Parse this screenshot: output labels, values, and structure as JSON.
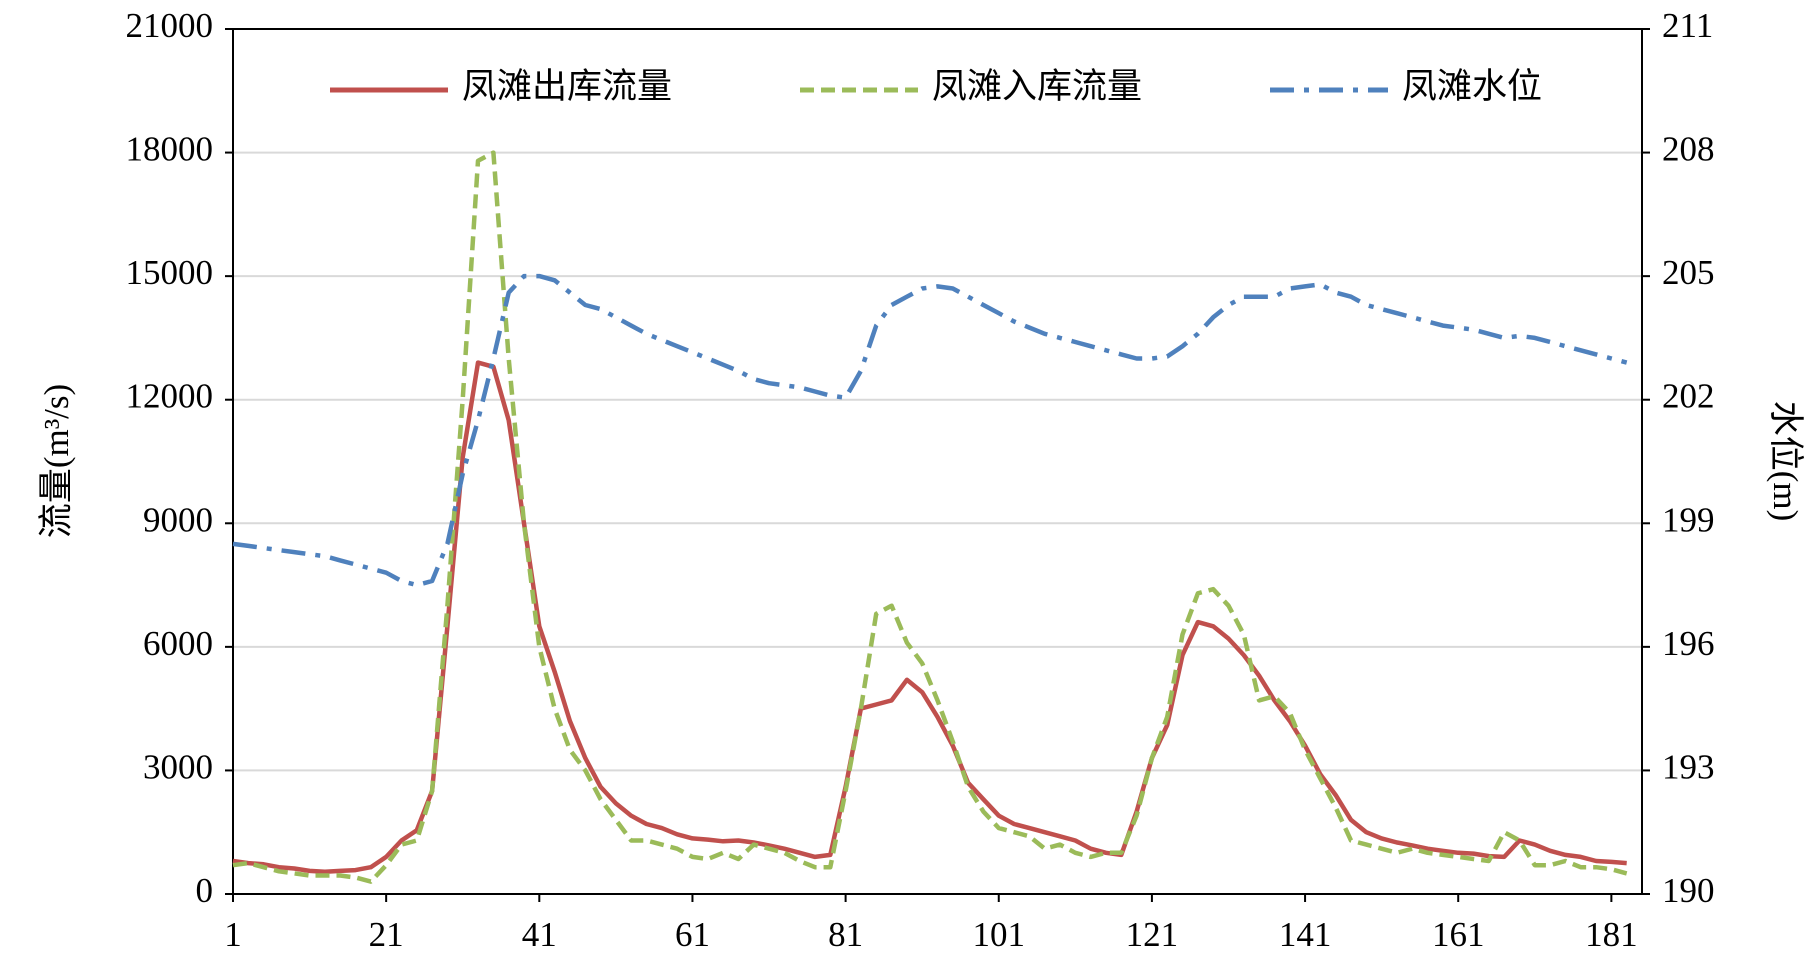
{
  "chart_data": {
    "type": "line",
    "y_label": "流量(m³/s)",
    "y2_label": "水位(m)",
    "x": [
      1,
      3,
      5,
      7,
      9,
      11,
      13,
      15,
      17,
      19,
      21,
      23,
      25,
      27,
      29,
      31,
      33,
      35,
      37,
      39,
      41,
      43,
      45,
      47,
      49,
      51,
      53,
      55,
      57,
      59,
      61,
      63,
      65,
      67,
      69,
      71,
      73,
      75,
      77,
      79,
      81,
      83,
      85,
      87,
      89,
      91,
      93,
      95,
      97,
      99,
      101,
      103,
      105,
      107,
      109,
      111,
      113,
      115,
      117,
      119,
      121,
      123,
      125,
      127,
      129,
      131,
      133,
      135,
      137,
      139,
      141,
      143,
      145,
      147,
      149,
      151,
      153,
      155,
      157,
      159,
      161,
      163,
      165,
      167,
      169,
      171,
      173,
      175,
      177,
      179,
      181,
      183
    ],
    "xlim": [
      1,
      185
    ],
    "xticks": [
      1,
      21,
      41,
      61,
      81,
      101,
      121,
      141,
      161,
      181
    ],
    "ylim": [
      0,
      21000
    ],
    "yticks": [
      0,
      3000,
      6000,
      9000,
      12000,
      15000,
      18000,
      21000
    ],
    "y2lim": [
      190,
      211
    ],
    "y2ticks": [
      190,
      193,
      196,
      199,
      202,
      205,
      208,
      211
    ],
    "grid": true,
    "legend": "top",
    "series": [
      {
        "name": "凤滩出库流量",
        "color": "#c0504d",
        "linestyle": "solid",
        "values": [
          800,
          750,
          720,
          650,
          620,
          560,
          540,
          560,
          580,
          650,
          900,
          1300,
          1550,
          2500,
          6500,
          10600,
          12900,
          12800,
          11500,
          9000,
          6500,
          5400,
          4200,
          3300,
          2600,
          2200,
          1900,
          1700,
          1600,
          1450,
          1350,
          1320,
          1280,
          1300,
          1250,
          1180,
          1100,
          1000,
          900,
          950,
          2600,
          4500,
          4600,
          4700,
          5200,
          4900,
          4300,
          3600,
          2700,
          2300,
          1900,
          1700,
          1600,
          1500,
          1400,
          1300,
          1100,
          1000,
          950,
          2000,
          3300,
          4100,
          5800,
          6600,
          6500,
          6200,
          5800,
          5300,
          4700,
          4200,
          3600,
          2900,
          2400,
          1800,
          1500,
          1350,
          1250,
          1180,
          1100,
          1050,
          1000,
          980,
          920,
          900,
          1300,
          1200,
          1050,
          950,
          900,
          800,
          780,
          750
        ]
      },
      {
        "name": "凤滩入库流量",
        "color": "#9bbb59",
        "linestyle": "dashed",
        "values": [
          700,
          750,
          650,
          550,
          500,
          450,
          450,
          450,
          400,
          300,
          700,
          1200,
          1300,
          2500,
          7000,
          12000,
          17800,
          18000,
          13000,
          9000,
          6000,
          4500,
          3500,
          3000,
          2300,
          1800,
          1300,
          1300,
          1200,
          1100,
          900,
          850,
          1000,
          850,
          1200,
          1100,
          1000,
          800,
          650,
          650,
          2500,
          4500,
          6800,
          7000,
          6100,
          5600,
          4700,
          3700,
          2600,
          2000,
          1600,
          1500,
          1400,
          1100,
          1200,
          1000,
          900,
          1000,
          1000,
          1900,
          3300,
          4300,
          6300,
          7300,
          7400,
          7000,
          6300,
          4700,
          4800,
          4400,
          3500,
          2800,
          2100,
          1300,
          1200,
          1100,
          1000,
          1100,
          1000,
          950,
          900,
          850,
          800,
          1500,
          1300,
          700,
          700,
          800,
          650,
          650,
          600,
          500
        ]
      },
      {
        "name": "凤滩水位",
        "color": "#4f81bd",
        "linestyle": "dashdot",
        "axis": "y2",
        "values": [
          198.5,
          198.45,
          198.4,
          198.35,
          198.3,
          198.25,
          198.2,
          198.1,
          198.0,
          197.9,
          197.8,
          197.6,
          197.5,
          197.6,
          198.5,
          200.2,
          201.5,
          203,
          204.6,
          205,
          205,
          204.9,
          204.6,
          204.3,
          204.2,
          204,
          203.8,
          203.6,
          203.45,
          203.3,
          203.15,
          203,
          202.85,
          202.7,
          202.5,
          202.4,
          202.35,
          202.3,
          202.2,
          202.1,
          202.05,
          202.7,
          203.8,
          204.3,
          204.5,
          204.7,
          204.75,
          204.7,
          204.5,
          204.3,
          204.1,
          203.9,
          203.75,
          203.6,
          203.5,
          203.4,
          203.3,
          203.2,
          203.1,
          203,
          203,
          203.05,
          203.3,
          203.6,
          204,
          204.3,
          204.5,
          204.5,
          204.5,
          204.7,
          204.75,
          204.8,
          204.6,
          204.5,
          204.3,
          204.2,
          204.1,
          204,
          203.9,
          203.8,
          203.75,
          203.7,
          203.6,
          203.5,
          203.55,
          203.5,
          203.4,
          203.3,
          203.2,
          203.1,
          203.0,
          202.9
        ]
      }
    ]
  }
}
